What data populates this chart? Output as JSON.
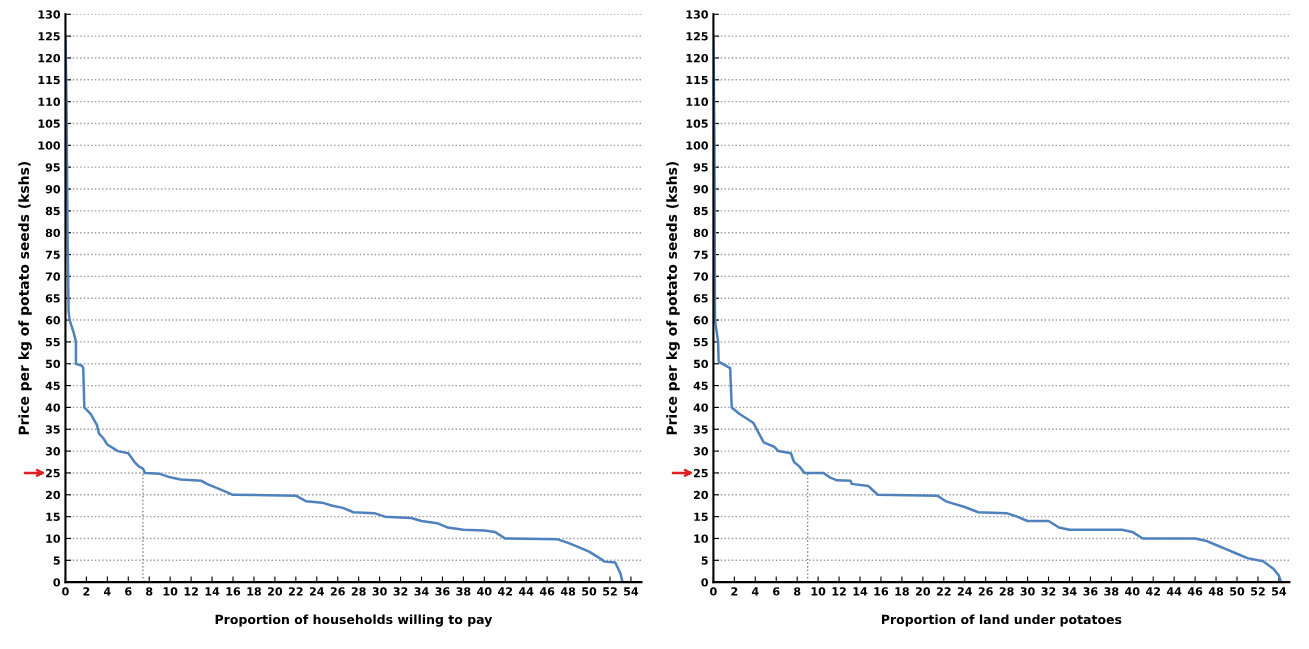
{
  "chart_data": [
    {
      "type": "line",
      "xlabel": "Proportion of households willing to pay",
      "ylabel": "Price per kg of potato seeds (kshs)",
      "xlim": [
        0,
        55
      ],
      "ylim": [
        0,
        130
      ],
      "xticks": [
        0,
        2,
        4,
        6,
        8,
        10,
        12,
        14,
        16,
        18,
        20,
        22,
        24,
        26,
        28,
        30,
        32,
        34,
        36,
        38,
        40,
        42,
        44,
        46,
        48,
        50,
        52,
        54
      ],
      "yticks": [
        0,
        5,
        10,
        15,
        20,
        25,
        30,
        35,
        40,
        45,
        50,
        55,
        60,
        65,
        70,
        75,
        80,
        85,
        90,
        95,
        100,
        105,
        110,
        115,
        120,
        125,
        130
      ],
      "grid": "y",
      "line_style": "solid",
      "series": [
        {
          "color": "#4f81bd",
          "x": [
            0,
            0.1,
            0.2,
            0.3,
            0.4,
            0.8,
            1,
            1,
            1.6,
            1.7,
            1.8,
            2.4,
            3,
            3.2,
            3.6,
            4,
            5,
            6,
            6.6,
            7,
            7.4,
            7.6,
            9,
            10,
            11,
            13,
            13.5,
            15,
            16,
            22,
            23,
            24.5,
            25.5,
            26.5,
            27.5,
            29.5,
            30.5,
            33,
            34,
            35.5,
            36.5,
            38,
            40,
            41,
            42,
            47,
            48,
            49,
            50,
            51,
            51.5,
            52.5,
            53,
            53.2
          ],
          "values": [
            125,
            110,
            80,
            62,
            60,
            57,
            55,
            50,
            49.5,
            49,
            40,
            38.5,
            36,
            34,
            33,
            31.5,
            30,
            29.5,
            27.5,
            26.5,
            26,
            25,
            24.8,
            24,
            23.5,
            23.2,
            22.5,
            21,
            20,
            19.8,
            18.5,
            18.2,
            17.5,
            17,
            16,
            15.8,
            15,
            14.7,
            14,
            13.5,
            12.5,
            12,
            11.8,
            11.5,
            10,
            9.8,
            9,
            8,
            7,
            5.5,
            4.7,
            4.5,
            2,
            0
          ]
        },
        {
          "color": "#7f7f7f",
          "line_style": "dotted",
          "x": [
            7.4,
            7.4
          ],
          "values": [
            0,
            25
          ]
        }
      ]
    },
    {
      "type": "line",
      "xlabel": "Proportion of land under potatoes",
      "ylabel": "Price per kg of potato seeds (kshs)",
      "xlim": [
        0,
        55
      ],
      "ylim": [
        0,
        130
      ],
      "xticks": [
        0,
        2,
        4,
        6,
        8,
        10,
        12,
        14,
        16,
        18,
        20,
        22,
        24,
        26,
        28,
        30,
        32,
        34,
        36,
        38,
        40,
        42,
        44,
        46,
        48,
        50,
        52,
        54
      ],
      "yticks": [
        0,
        5,
        10,
        15,
        20,
        25,
        30,
        35,
        40,
        45,
        50,
        55,
        60,
        65,
        70,
        75,
        80,
        85,
        90,
        95,
        100,
        105,
        110,
        115,
        120,
        125,
        130
      ],
      "grid": "y",
      "line_style": "solid",
      "series": [
        {
          "color": "#4f81bd",
          "x": [
            0,
            0.1,
            0.15,
            0.45,
            0.5,
            1.6,
            1.75,
            2.5,
            3.8,
            4.8,
            5.8,
            6.2,
            7.4,
            7.7,
            8.2,
            8.7,
            10.5,
            11.1,
            11.8,
            13.1,
            13.2,
            14.8,
            15.7,
            21.4,
            22.2,
            24,
            25.3,
            28,
            29,
            30,
            32,
            33,
            34,
            39,
            40,
            41,
            46,
            47,
            48,
            49,
            50,
            51,
            52,
            52.5,
            53.5,
            54,
            54.2
          ],
          "values": [
            125,
            100,
            60,
            55,
            50.5,
            49,
            40,
            38.5,
            36.5,
            32,
            31,
            30,
            29.5,
            27.5,
            26.5,
            25,
            25,
            24,
            23.3,
            23.2,
            22.5,
            22,
            20,
            19.8,
            18.5,
            17.2,
            16,
            15.8,
            15,
            14,
            14,
            12.5,
            12,
            12,
            11.5,
            10,
            10,
            9.5,
            8.5,
            7.5,
            6.5,
            5.5,
            5,
            4.8,
            3,
            1.5,
            0
          ]
        },
        {
          "color": "#7f7f7f",
          "line_style": "dotted",
          "x": [
            9,
            9
          ],
          "values": [
            0,
            25
          ]
        }
      ]
    }
  ]
}
